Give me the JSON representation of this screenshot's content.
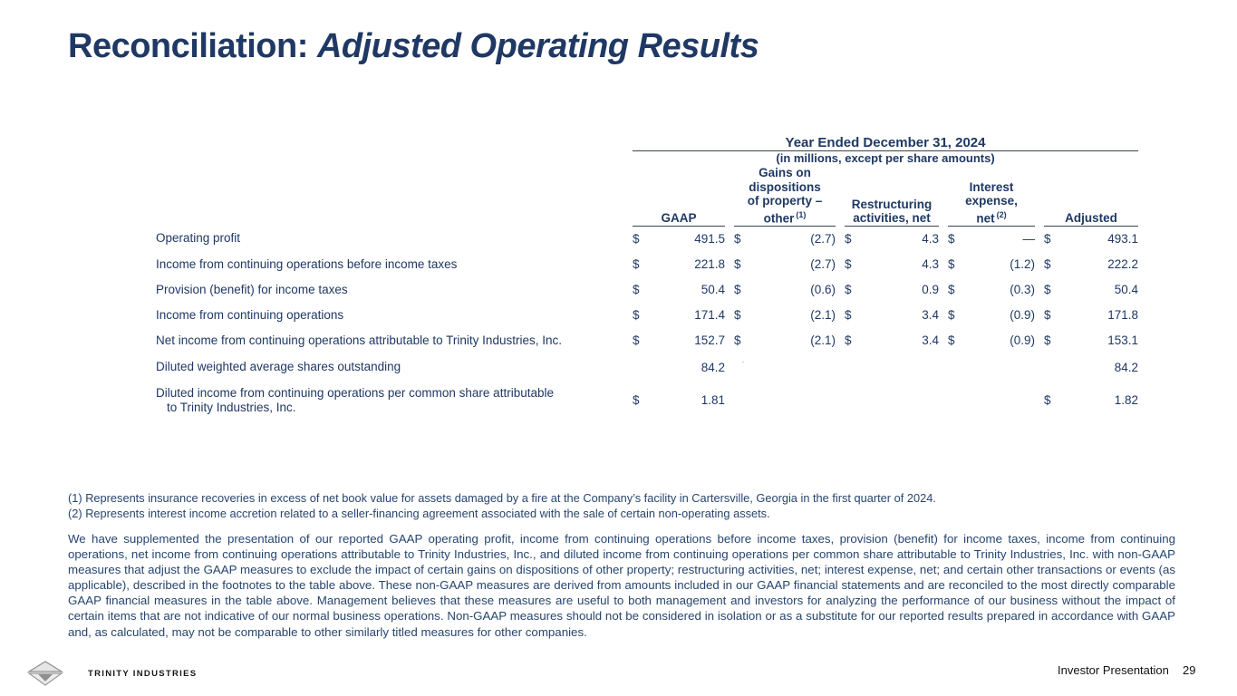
{
  "title": {
    "prefix": "Reconciliation:",
    "emphasis": "Adjusted Operating Results"
  },
  "colors": {
    "heading_navy": "#1f3864",
    "body_navy": "#27456e",
    "rule": "#3c4450",
    "footer_text": "#111111",
    "logo_gray": "#a8a8a8"
  },
  "table": {
    "period_header": "Year Ended December 31, 2024",
    "units_note": "(in millions, except per share amounts)",
    "columns": [
      {
        "lines": [
          "GAAP"
        ]
      },
      {
        "lines": [
          "Gains on",
          "dispositions",
          "of property –",
          "other"
        ],
        "sup": "(1)"
      },
      {
        "lines": [
          "Restructuring",
          "activities, net"
        ]
      },
      {
        "lines": [
          "Interest",
          "expense,",
          "net"
        ],
        "sup": "(2)"
      },
      {
        "lines": [
          "Adjusted"
        ]
      }
    ],
    "rows": [
      {
        "label": "Operating profit",
        "cells": [
          [
            "$",
            "491.5"
          ],
          [
            "$",
            "(2.7)"
          ],
          [
            "$",
            "4.3"
          ],
          [
            "$",
            "—"
          ],
          [
            "$",
            "493.1"
          ]
        ]
      },
      {
        "label": "Income from continuing operations before income taxes",
        "cells": [
          [
            "$",
            "221.8"
          ],
          [
            "$",
            "(2.7)"
          ],
          [
            "$",
            "4.3"
          ],
          [
            "$",
            "(1.2)"
          ],
          [
            "$",
            "222.2"
          ]
        ]
      },
      {
        "label": "Provision (benefit) for income taxes",
        "cells": [
          [
            "$",
            "50.4"
          ],
          [
            "$",
            "(0.6)"
          ],
          [
            "$",
            "0.9"
          ],
          [
            "$",
            "(0.3)"
          ],
          [
            "$",
            "50.4"
          ]
        ]
      },
      {
        "label": "Income from continuing operations",
        "cells": [
          [
            "$",
            "171.4"
          ],
          [
            "$",
            "(2.1)"
          ],
          [
            "$",
            "3.4"
          ],
          [
            "$",
            "(0.9)"
          ],
          [
            "$",
            "171.8"
          ]
        ]
      },
      {
        "label": "Net income from continuing operations attributable to Trinity Industries, Inc.",
        "cells": [
          [
            "$",
            "152.7"
          ],
          [
            "$",
            "(2.1)"
          ],
          [
            "$",
            "3.4"
          ],
          [
            "$",
            "(0.9)"
          ],
          [
            "$",
            "153.1"
          ]
        ]
      },
      {
        "label": "Diluted weighted average shares outstanding",
        "cells": [
          [
            "",
            "84.2"
          ],
          [
            ".",
            ""
          ],
          [
            "",
            ""
          ],
          [
            "",
            ""
          ],
          [
            "",
            "84.2"
          ]
        ]
      },
      {
        "label": "Diluted income from continuing operations per common share attributable",
        "label2": "to Trinity Industries, Inc.",
        "tall": true,
        "cells": [
          [
            "$",
            "1.81"
          ],
          [
            "",
            ""
          ],
          [
            "",
            ""
          ],
          [
            "",
            ""
          ],
          [
            "$",
            "1.82"
          ]
        ]
      }
    ]
  },
  "footnotes": [
    "(1) Represents insurance recoveries in excess of net book value for assets damaged by a fire at the Company’s facility in Cartersville, Georgia in the first quarter of 2024.",
    "(2) Represents interest income accretion related to a seller-financing agreement associated with the sale of certain non-operating assets."
  ],
  "paragraph": "We have supplemented the presentation of our reported GAAP operating profit, income from continuing operations before income taxes, provision (benefit) for income taxes, income from continuing operations, net income from continuing operations attributable to Trinity Industries, Inc., and diluted income from continuing operations per common share attributable to Trinity Industries, Inc. with non-GAAP measures that adjust the GAAP measures to exclude the impact of certain gains on dispositions of other property; restructuring activities, net; interest expense, net; and certain other transactions or events (as applicable), described in the footnotes to the table above. These non-GAAP measures are derived from amounts included in our GAAP financial statements and are reconciled to the most directly comparable GAAP financial measures in the table above. Management believes that these measures are useful to both management and investors for analyzing the performance of our business without the impact of certain items that are not indicative of our normal business operations. Non-GAAP measures should not be considered in isolation or as a substitute for our reported results prepared in accordance with GAAP and, as calculated, may not be comparable to other similarly titled measures for other companies.",
  "footer": {
    "brand": "TRINITY INDUSTRIES",
    "right_label": "Investor Presentation",
    "page_number": "29"
  }
}
